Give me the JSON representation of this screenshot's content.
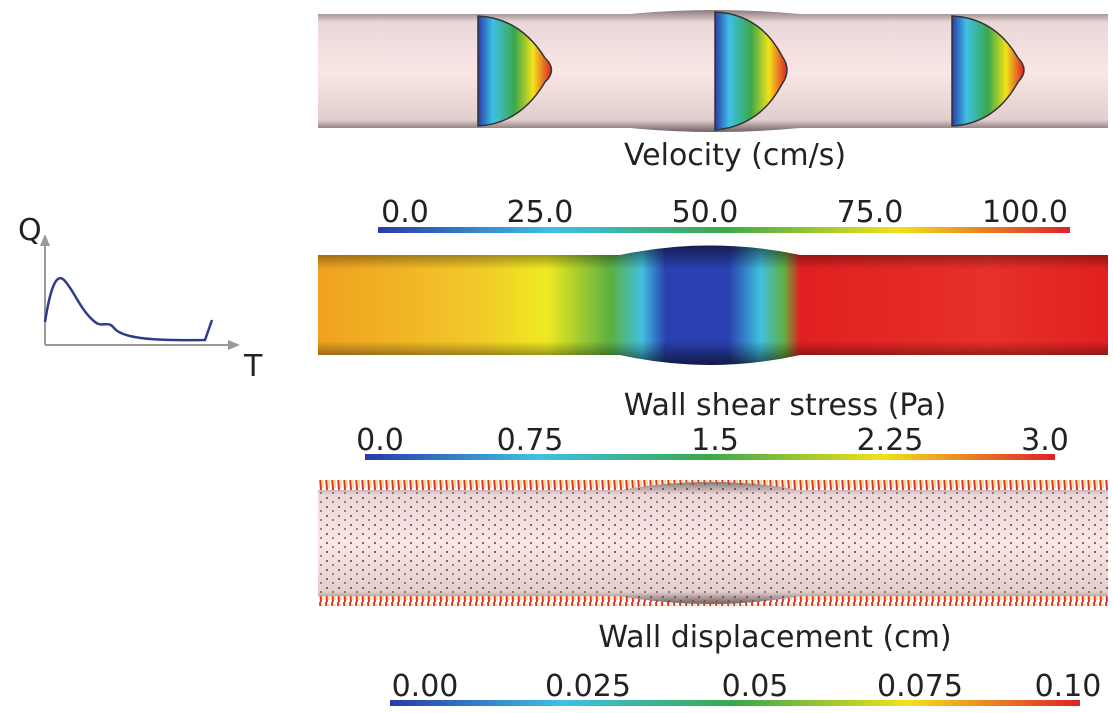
{
  "inset": {
    "y_label": "Q",
    "x_label": "T"
  },
  "panels": [
    {
      "title": "Velocity (cm/s)",
      "scale_labels": [
        "0.0",
        "25.0",
        "50.0",
        "75.0",
        "100.0"
      ]
    },
    {
      "title": "Wall shear stress (Pa)",
      "scale_labels": [
        "0.0",
        "0.75",
        "1.5",
        "2.25",
        "3.0"
      ]
    },
    {
      "title": "Wall displacement (cm)",
      "scale_labels": [
        "0.00",
        "0.025",
        "0.05",
        "0.075",
        "0.10"
      ]
    }
  ]
}
